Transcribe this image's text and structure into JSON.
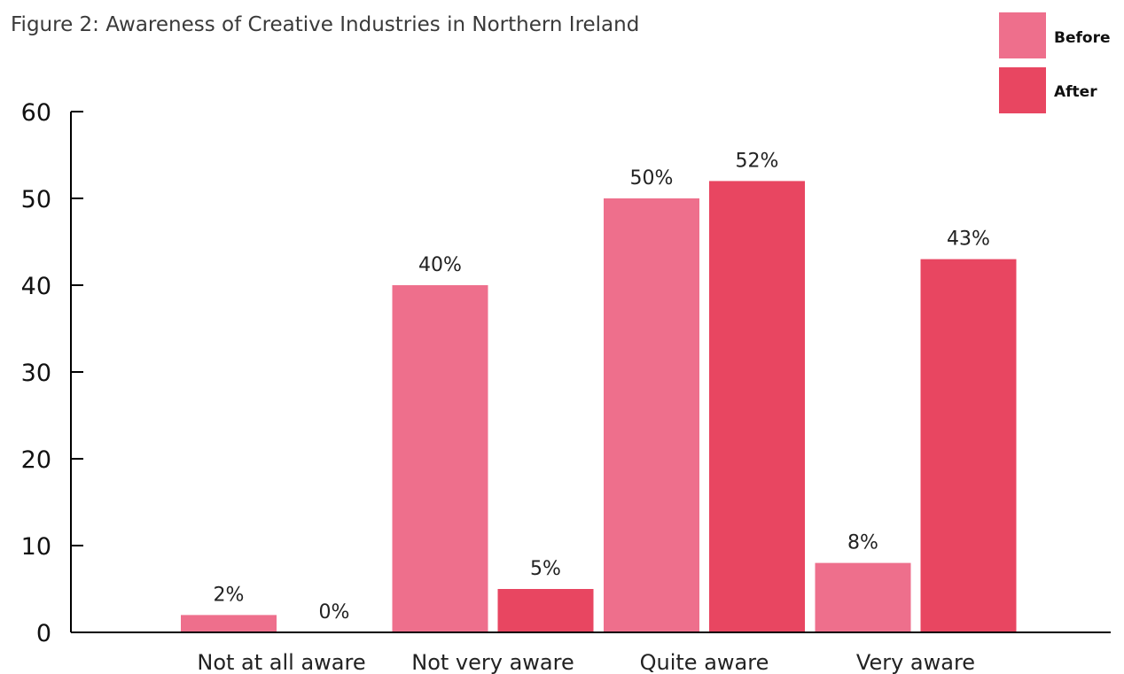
{
  "chart_data": {
    "type": "bar",
    "title": "Figure 2: Awareness of Creative Industries in Northern Ireland",
    "xlabel": "",
    "ylabel": "",
    "categories": [
      "Not at all aware",
      "Not very aware",
      "Quite aware",
      "Very aware"
    ],
    "series": [
      {
        "name": "Before",
        "values": [
          2,
          40,
          50,
          8
        ],
        "labels": [
          "2%",
          "40%",
          "50%",
          "8%"
        ],
        "color": "#ee6f8c"
      },
      {
        "name": "After",
        "values": [
          0,
          5,
          52,
          43
        ],
        "labels": [
          "0%",
          "5%",
          "52%",
          "43%"
        ],
        "color": "#e84661"
      }
    ],
    "ylim": [
      0,
      60
    ],
    "yticks": [
      0,
      10,
      20,
      30,
      40,
      50,
      60
    ],
    "grid": false,
    "legend": "top-right"
  }
}
